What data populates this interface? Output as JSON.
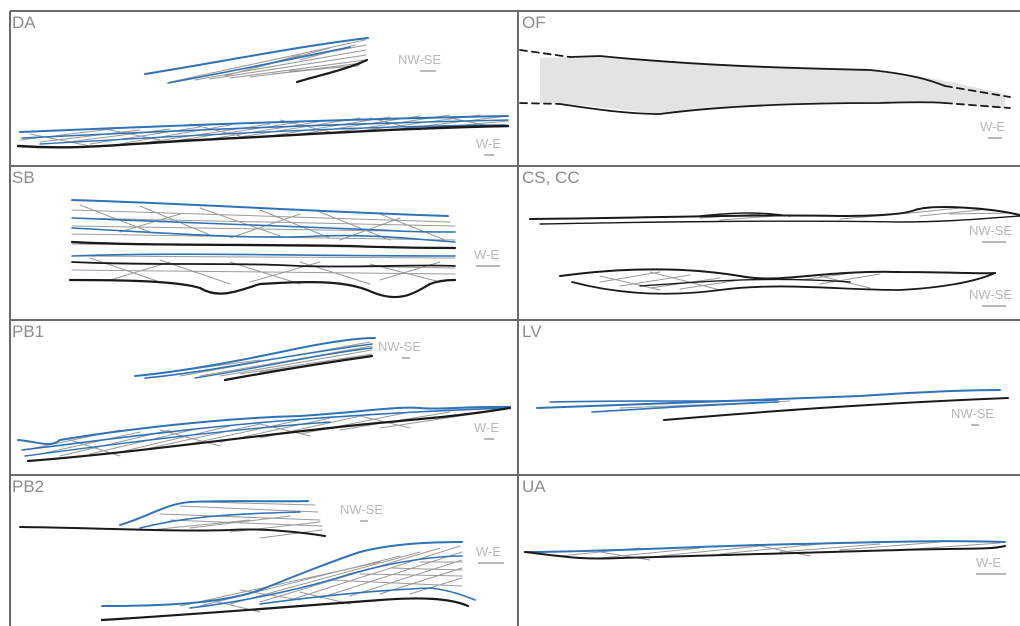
{
  "colors": {
    "frame": "#6b6b6b",
    "blue": "#2f72b5",
    "black": "#1a1a1a",
    "gray": "#9a9a9a",
    "fill": "#e3e3e4",
    "label": "#8c8c8c",
    "orientation": "#b8b8b8"
  },
  "panels": [
    {
      "label": "DA",
      "orientations": [
        "NW-SE",
        "W-E"
      ]
    },
    {
      "label": "OF",
      "orientations": [
        "W-E"
      ]
    },
    {
      "label": "SB",
      "orientations": [
        "W-E"
      ]
    },
    {
      "label": "CS, CC",
      "orientations": [
        "NW-SE",
        "NW-SE"
      ]
    },
    {
      "label": "PB1",
      "orientations": [
        "NW-SE",
        "W-E"
      ]
    },
    {
      "label": "LV",
      "orientations": [
        "NW-SE"
      ]
    },
    {
      "label": "PB2",
      "orientations": [
        "NW-SE",
        "W-E"
      ]
    },
    {
      "label": "UA",
      "orientations": [
        "W-E"
      ]
    }
  ]
}
